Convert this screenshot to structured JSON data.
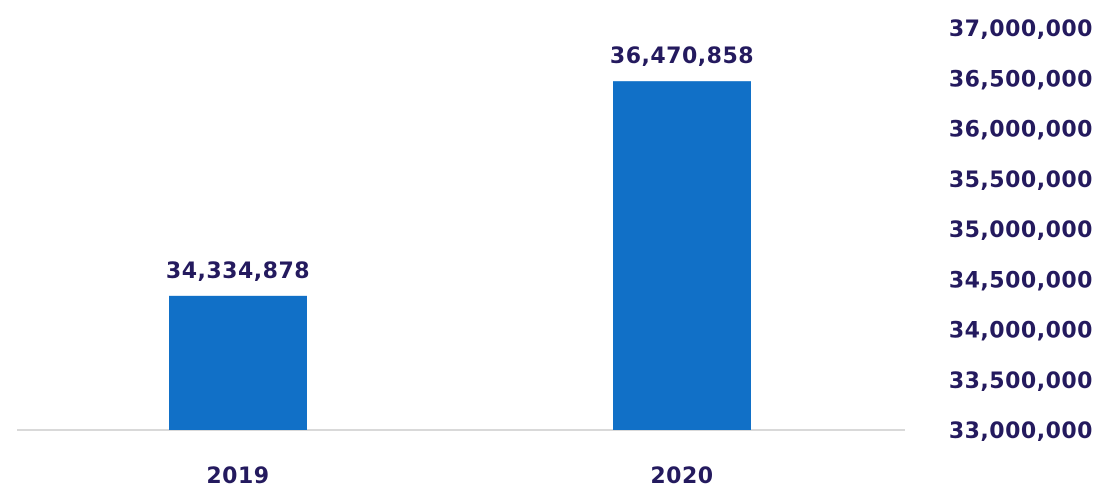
{
  "chart_data": {
    "type": "bar",
    "title": "",
    "xlabel": "",
    "ylabel": "",
    "categories": [
      "2019",
      "2020"
    ],
    "values": [
      34334878,
      36470858
    ],
    "data_labels": [
      "34,334,878",
      "36,470,858"
    ],
    "ylim": [
      33000000,
      37000000
    ],
    "yticks": [
      33000000,
      33500000,
      34000000,
      34500000,
      35000000,
      35500000,
      36000000,
      36500000,
      37000000
    ],
    "ytick_labels": [
      "33,000,000",
      "33,500,000",
      "34,000,000",
      "34,500,000",
      "35,000,000",
      "35,500,000",
      "36,000,000",
      "36,500,000",
      "37,000,000"
    ],
    "y_axis_position": "right",
    "grid": false,
    "legend": "none",
    "colors": {
      "bar": "#1170c7",
      "text": "#241a5e",
      "baseline": "#d9d9d9"
    }
  }
}
